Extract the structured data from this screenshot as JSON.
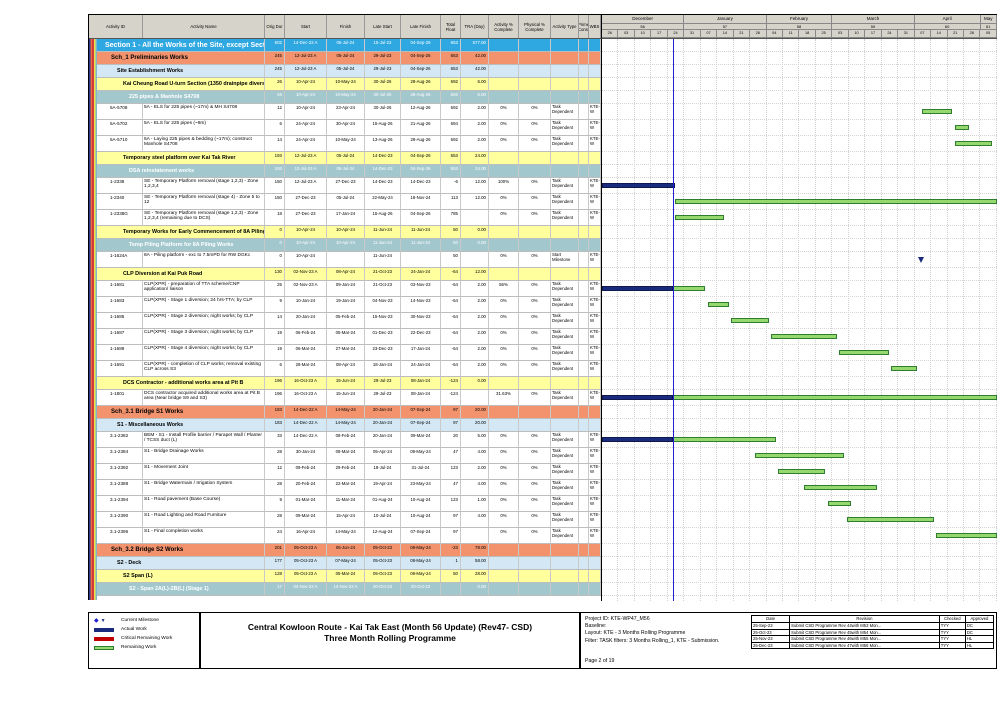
{
  "table": {
    "columns": [
      "Activity ID",
      "Activity Name",
      "Orig Dur",
      "Start",
      "Finish",
      "Late Start",
      "Late Finish",
      "Total Float",
      "TRA (Day)",
      "Activity % Complete",
      "Physical % Complete",
      "Activity Type",
      "Prime Const",
      "WBS"
    ]
  },
  "timeline": {
    "window_start": "26-Nov-23",
    "window_end": "12-May-24",
    "data_date": "26-Dec-23",
    "months": [
      {
        "name": "December",
        "num": "56",
        "weeks": [
          "26",
          "03",
          "10",
          "17",
          "24"
        ]
      },
      {
        "name": "January",
        "num": "57",
        "weeks": [
          "31",
          "07",
          "14",
          "21",
          "28"
        ]
      },
      {
        "name": "February",
        "num": "58",
        "weeks": [
          "04",
          "11",
          "18",
          "25"
        ]
      },
      {
        "name": "March",
        "num": "59",
        "weeks": [
          "03",
          "10",
          "17",
          "24",
          "31"
        ]
      },
      {
        "name": "April",
        "num": "60",
        "weeks": [
          "07",
          "14",
          "21",
          "28"
        ]
      },
      {
        "name": "May",
        "num": "61",
        "weeks": [
          "05"
        ]
      }
    ]
  },
  "colors": {
    "level1": "#2fa8e1",
    "level2": "#f2936e",
    "level3": "#d3e8f4",
    "level4": "#ffff9e",
    "level5": "#a2c8ce",
    "remaining": "#95d96e",
    "remaining_border": "#2f7d2f",
    "actual": "#1a2b7d",
    "critical": "#c00000",
    "milestone": "#1a2b7d",
    "data_date_line": "#1f1fd6"
  },
  "rows": [
    {
      "lv": 1,
      "name": "Section 1 - All the Works of the Site, except Section 2 to 17",
      "od": "502",
      "st": "14-Dec-22 A",
      "fn": "05-Jul-24",
      "ls": "15-Jul-23",
      "lf": "04-Sep-26",
      "tf": "653",
      "tra": "577.00"
    },
    {
      "lv": 2,
      "name": "Sch_1 Preliminaries Works",
      "od": "245",
      "st": "12-Jul-23 A",
      "fn": "05-Jul-24",
      "ls": "29-Jul-23",
      "lf": "04-Sep-26",
      "tf": "653",
      "tra": "42.00"
    },
    {
      "lv": 3,
      "name": "Site Establishment Works",
      "od": "245",
      "st": "12-Jul-23 A",
      "fn": "05-Jul-24",
      "ls": "29-Jul-23",
      "lf": "04-Sep-26",
      "tf": "653",
      "tra": "42.00"
    },
    {
      "lv": 4,
      "name": "Kai Cheung Road U-turn Section (1350 drainpipe diversion) (CE-0024)",
      "od": "26",
      "st": "10-Apr-24",
      "fn": "10-May-24",
      "ls": "30-Jul-26",
      "lf": "28-Aug-26",
      "tf": "692",
      "tra": "6.00"
    },
    {
      "lv": 5,
      "name": "225 pipes & Manhole S4708",
      "od": "26",
      "st": "10-Apr-24",
      "fn": "10-May-24",
      "ls": "30-Jul-26",
      "lf": "28-Aug-26",
      "tf": "692",
      "tra": "6.00"
    },
    {
      "lv": 0,
      "id": "5A-5708",
      "name": "5A - ELS for 225 pipes (~17m) & MH S4708",
      "od": "12",
      "st": "10-Apr-24",
      "fn": "23-Apr-24",
      "ls": "30-Jul-26",
      "lf": "12-Aug-26",
      "tf": "692",
      "tra": "2.00",
      "ap": "0%",
      "pp": "0%",
      "ty": "Task Dependent",
      "wbs": "KTE-W",
      "bars": [
        [
          "r",
          "10-Apr-24",
          "23-Apr-24"
        ]
      ]
    },
    {
      "lv": 0,
      "id": "5A-5702",
      "name": "5A - ELS for 225 pipes (~9m)",
      "od": "6",
      "st": "24-Apr-24",
      "fn": "30-Apr-24",
      "ls": "15-Aug-26",
      "lf": "21-Aug-26",
      "tf": "694",
      "tra": "2.00",
      "ap": "0%",
      "pp": "0%",
      "ty": "Task Dependent",
      "wbs": "KTE-W",
      "bars": [
        [
          "r",
          "24-Apr-24",
          "30-Apr-24"
        ]
      ]
    },
    {
      "lv": 0,
      "id": "5A-5710",
      "name": "5A - Laying 225 pipes & bedding (~17m); construct Manhole S4708",
      "od": "14",
      "st": "24-Apr-24",
      "fn": "10-May-24",
      "ls": "13-Aug-26",
      "lf": "28-Aug-26",
      "tf": "692",
      "tra": "2.00",
      "ap": "0%",
      "pp": "0%",
      "ty": "Task Dependent",
      "wbs": "KTE-W",
      "bars": [
        [
          "r",
          "24-Apr-24",
          "10-May-24"
        ]
      ]
    },
    {
      "lv": 4,
      "name": "Temporary steel platform over Kai Tak River",
      "od": "193",
      "st": "12-Jul-23 A",
      "fn": "05-Jul-24",
      "ls": "14-Dec-23",
      "lf": "04-Sep-26",
      "tf": "653",
      "tra": "24.00"
    },
    {
      "lv": 5,
      "name": "DSA reinstatement works",
      "od": "193",
      "st": "12-Jul-23 A",
      "fn": "05-Jul-24",
      "ls": "14-Dec-23",
      "lf": "04-Sep-26",
      "tf": "653",
      "tra": "24.00"
    },
    {
      "lv": 0,
      "id": "1-2338",
      "name": "SE - Temporary Platform removal (stage 1,2,3) - Zone 1,2,3,4",
      "od": "150",
      "st": "12-Jul-23 A",
      "fn": "27-Dec-23",
      "ls": "14-Dec-23",
      "lf": "14-Dec-23",
      "tf": "-6",
      "tra": "12.00",
      "ap": "100%",
      "pp": "0%",
      "ty": "Task Dependent",
      "wbs": "KTE-W",
      "bars": [
        [
          "a",
          "12-Jul-23",
          "27-Dec-23"
        ]
      ]
    },
    {
      "lv": 0,
      "id": "1-2340",
      "name": "SE - Temporary Platform removal (stage 4) - Zone 5 to 12",
      "od": "150",
      "st": "27-Dec-23",
      "fn": "05-Jul-24",
      "ls": "22-May-24",
      "lf": "18-Nov-24",
      "tf": "113",
      "tra": "12.00",
      "ap": "0%",
      "pp": "0%",
      "ty": "Task Dependent",
      "wbs": "KTE-W",
      "bars": [
        [
          "r",
          "27-Dec-23",
          "05-Jul-24"
        ]
      ]
    },
    {
      "lv": 0,
      "id": "1-2338G",
      "name": "SE - Temporary Platform removal (stage 1,2,3) - Zone 1,2,3,4 (remaining due to DCS)",
      "od": "18",
      "st": "27-Dec-23",
      "fn": "17-Jan-24",
      "ls": "15-Aug-26",
      "lf": "04-Sep-26",
      "tf": "785",
      "tra": "",
      "ap": "0%",
      "pp": "0%",
      "ty": "Task Dependent",
      "wbs": "KTE-W",
      "bars": [
        [
          "r",
          "27-Dec-23",
          "17-Jan-24"
        ]
      ]
    },
    {
      "lv": 4,
      "name": "Temporary Works for Early Commencement of 8A Piling Works",
      "od": "0",
      "st": "10-Apr-24",
      "fn": "10-Apr-24",
      "ls": "11-Jun-24",
      "lf": "11-Jun-24",
      "tf": "50",
      "tra": "0.00"
    },
    {
      "lv": 5,
      "name": "Temp Piling Platform for 8A Piling Works",
      "od": "0",
      "st": "10-Apr-24",
      "fn": "10-Apr-24",
      "ls": "11-Jun-24",
      "lf": "11-Jun-24",
      "tf": "50",
      "tra": "0.00"
    },
    {
      "lv": 0,
      "id": "1-1624A",
      "name": "8A - Piling platform - exc to 7.5mPD for RW DGKc",
      "od": "0",
      "st": "10-Apr-24",
      "fn": "",
      "ls": "11-Jun-24",
      "lf": "",
      "tf": "50",
      "tra": "",
      "ap": "0%",
      "pp": "0%",
      "ty": "Start Milestone",
      "wbs": "KTE-W",
      "ms": "10-Apr-24"
    },
    {
      "lv": 4,
      "name": "CLP Diversion at Kai Puk Road",
      "od": "130",
      "st": "02-Nov-23 A",
      "fn": "08-Apr-24",
      "ls": "21-Oct-23",
      "lf": "24-Jan-24",
      "tf": "-64",
      "tra": "12.00"
    },
    {
      "lv": 0,
      "id": "1-1681",
      "name": "CLP(XPR) - preparation of TTA scheme/CNP application/ liaison",
      "od": "25",
      "st": "02-Nov-23 A",
      "fn": "09-Jan-24",
      "ls": "21-Oct-23",
      "lf": "03-Nov-23",
      "tf": "-64",
      "tra": "2.00",
      "ap": "56%",
      "pp": "0%",
      "ty": "Task Dependent",
      "wbs": "KTE-W",
      "bars": [
        [
          "a",
          "02-Nov-23",
          "26-Dec-23"
        ],
        [
          "r",
          "26-Dec-23",
          "09-Jan-24"
        ]
      ]
    },
    {
      "lv": 0,
      "id": "1-1683",
      "name": "CLP(XPR) - Stage 1 diversion; 24 hrs-TTA; by CLP",
      "od": "9",
      "st": "10-Jan-24",
      "fn": "19-Jan-24",
      "ls": "04-Nov-23",
      "lf": "14-Nov-23",
      "tf": "-64",
      "tra": "2.00",
      "ap": "0%",
      "pp": "0%",
      "ty": "Task Dependent",
      "wbs": "KTE-W",
      "bars": [
        [
          "r",
          "10-Jan-24",
          "19-Jan-24"
        ]
      ]
    },
    {
      "lv": 0,
      "id": "1-1685",
      "name": "CLP(XPR) - Stage 2 diversion; night works; by CLP",
      "od": "14",
      "st": "20-Jan-24",
      "fn": "05-Feb-24",
      "ls": "15-Nov-23",
      "lf": "30-Nov-23",
      "tf": "-64",
      "tra": "2.00",
      "ap": "0%",
      "pp": "0%",
      "ty": "Task Dependent",
      "wbs": "KTE-W",
      "bars": [
        [
          "r",
          "20-Jan-24",
          "05-Feb-24"
        ]
      ]
    },
    {
      "lv": 0,
      "id": "1-1687",
      "name": "CLP(XPR) - Stage 3 diversion; night works; by CLP",
      "od": "19",
      "st": "06-Feb-24",
      "fn": "05-Mar-24",
      "ls": "01-Dec-23",
      "lf": "22-Dec-23",
      "tf": "-64",
      "tra": "2.00",
      "ap": "0%",
      "pp": "0%",
      "ty": "Task Dependent",
      "wbs": "KTE-W",
      "bars": [
        [
          "r",
          "06-Feb-24",
          "05-Mar-24"
        ]
      ]
    },
    {
      "lv": 0,
      "id": "1-1689",
      "name": "CLP(XPR) - Stage 4 diversion; night works; by CLP",
      "od": "19",
      "st": "06-Mar-24",
      "fn": "27-Mar-24",
      "ls": "23-Dec-23",
      "lf": "17-Jan-24",
      "tf": "-64",
      "tra": "2.00",
      "ap": "0%",
      "pp": "0%",
      "ty": "Task Dependent",
      "wbs": "KTE-W",
      "bars": [
        [
          "r",
          "06-Mar-24",
          "27-Mar-24"
        ]
      ]
    },
    {
      "lv": 0,
      "id": "1-1691",
      "name": "CLP(XPR) - completion of CLP works; removal existing CLP across S3",
      "od": "6",
      "st": "28-Mar-24",
      "fn": "08-Apr-24",
      "ls": "18-Jan-24",
      "lf": "24-Jan-24",
      "tf": "-64",
      "tra": "2.00",
      "ap": "0%",
      "pp": "0%",
      "ty": "Task Dependent",
      "wbs": "KTE-W",
      "bars": [
        [
          "r",
          "28-Mar-24",
          "08-Apr-24"
        ]
      ]
    },
    {
      "lv": 4,
      "name": "DCS Contractor - additional works area at Pit B",
      "od": "196",
      "st": "16-Oct-23 A",
      "fn": "15-Jun-24",
      "ls": "29-Jul-23",
      "lf": "08-Jan-24",
      "tf": "-124",
      "tra": "0.00"
    },
    {
      "lv": 0,
      "id": "1-1801",
      "name": "DCS contractor acquired additional works area at Pit B area (Near bridge S9 and S3)",
      "od": "196",
      "st": "16-Oct-23 A",
      "fn": "15-Jun-24",
      "ls": "29-Jul-23",
      "lf": "08-Jan-24",
      "tf": "-124",
      "tra": "",
      "ap": "31.63%",
      "pp": "0%",
      "ty": "Task Dependent",
      "wbs": "KTE-W",
      "bars": [
        [
          "a",
          "16-Oct-23",
          "26-Dec-23"
        ],
        [
          "r",
          "26-Dec-23",
          "15-Jun-24"
        ]
      ]
    },
    {
      "lv": 2,
      "name": "Sch_3.1 Bridge S1 Works",
      "od": "183",
      "st": "14-Dec-22 A",
      "fn": "14-May-24",
      "ls": "20-Jan-24",
      "lf": "07-Sep-24",
      "tf": "97",
      "tra": "20.00"
    },
    {
      "lv": 3,
      "name": "S1 - Miscellaneous Works",
      "od": "183",
      "st": "14-Dec-22 A",
      "fn": "14-May-24",
      "ls": "20-Jan-24",
      "lf": "07-Sep-24",
      "tf": "97",
      "tra": "20.00"
    },
    {
      "lv": 0,
      "id": "3.1-2382",
      "name": "BEM - S1 - Install Profile barrier / Parapet Wall / Planter / TCSS duct (L)",
      "od": "33",
      "st": "14-Dec-22 A",
      "fn": "08-Feb-24",
      "ls": "20-Jan-24",
      "lf": "09-Mar-24",
      "tf": "20",
      "tra": "5.00",
      "ap": "0%",
      "pp": "0%",
      "ty": "Task Dependent",
      "wbs": "KTE-W",
      "bars": [
        [
          "a",
          "14-Dec-22",
          "26-Dec-23"
        ],
        [
          "r",
          "26-Dec-23",
          "08-Feb-24"
        ]
      ]
    },
    {
      "lv": 0,
      "id": "3.1-2384",
      "name": "S1 - Bridge Drainage Works",
      "od": "28",
      "st": "30-Jan-24",
      "fn": "08-Mar-24",
      "ls": "05-Apr-24",
      "lf": "08-May-24",
      "tf": "47",
      "tra": "4.00",
      "ap": "0%",
      "pp": "0%",
      "ty": "Task Dependent",
      "wbs": "KTE-W",
      "bars": [
        [
          "r",
          "30-Jan-24",
          "08-Mar-24"
        ]
      ]
    },
    {
      "lv": 0,
      "id": "3.1-2392",
      "name": "S1 - Movement Joint",
      "od": "12",
      "st": "09-Feb-24",
      "fn": "29-Feb-24",
      "ls": "18-Jul-24",
      "lf": "31-Jul-24",
      "tf": "123",
      "tra": "2.00",
      "ap": "0%",
      "pp": "0%",
      "ty": "Task Dependent",
      "wbs": "KTE-W",
      "bars": [
        [
          "r",
          "09-Feb-24",
          "29-Feb-24"
        ]
      ]
    },
    {
      "lv": 0,
      "id": "3.1-2388",
      "name": "S1 - Bridge Watermain / Irrigation System",
      "od": "28",
      "st": "20-Feb-24",
      "fn": "22-Mar-24",
      "ls": "19-Apr-24",
      "lf": "23-May-24",
      "tf": "47",
      "tra": "4.00",
      "ap": "0%",
      "pp": "0%",
      "ty": "Task Dependent",
      "wbs": "KTE-W",
      "bars": [
        [
          "r",
          "20-Feb-24",
          "22-Mar-24"
        ]
      ]
    },
    {
      "lv": 0,
      "id": "3.1-2394",
      "name": "S1 - Road pavement (Base Course)",
      "od": "9",
      "st": "01-Mar-24",
      "fn": "11-Mar-24",
      "ls": "01-Aug-24",
      "lf": "10-Aug-24",
      "tf": "123",
      "tra": "1.00",
      "ap": "0%",
      "pp": "0%",
      "ty": "Task Dependent",
      "wbs": "KTE-W",
      "bars": [
        [
          "r",
          "01-Mar-24",
          "11-Mar-24"
        ]
      ]
    },
    {
      "lv": 0,
      "id": "3.1-2390",
      "name": "S1 - Road Lighting and Road Furniture",
      "od": "28",
      "st": "09-Mar-24",
      "fn": "15-Apr-24",
      "ls": "10-Jul-24",
      "lf": "10-Aug-24",
      "tf": "97",
      "tra": "4.00",
      "ap": "0%",
      "pp": "0%",
      "ty": "Task Dependent",
      "wbs": "KTE-W",
      "bars": [
        [
          "r",
          "09-Mar-24",
          "15-Apr-24"
        ]
      ]
    },
    {
      "lv": 0,
      "id": "3.1-2396",
      "name": "S1 - Final completion works",
      "od": "24",
      "st": "16-Apr-24",
      "fn": "14-May-24",
      "ls": "12-Aug-24",
      "lf": "07-Sep-24",
      "tf": "97",
      "tra": "",
      "ap": "0%",
      "pp": "0%",
      "ty": "Task Dependent",
      "wbs": "KTE-W",
      "bars": [
        [
          "r",
          "16-Apr-24",
          "14-May-24"
        ]
      ]
    },
    {
      "lv": 2,
      "name": "Sch_3.2 Bridge S2 Works",
      "od": "201",
      "st": "05-Oct-23 A",
      "fn": "05-Jun-24",
      "ls": "05-Oct-23",
      "lf": "08-May-24",
      "tf": "-23",
      "tra": "78.00"
    },
    {
      "lv": 3,
      "name": "S2 - Deck",
      "od": "177",
      "st": "05-Oct-23 A",
      "fn": "07-May-24",
      "ls": "05-Oct-23",
      "lf": "08-May-24",
      "tf": "1",
      "tra": "58.00"
    },
    {
      "lv": 4,
      "name": "S2 Span (L)",
      "od": "128",
      "st": "05-Oct-23 A",
      "fn": "05-Mar-24",
      "ls": "05-Oct-23",
      "lf": "08-May-24",
      "tf": "50",
      "tra": "28.00"
    },
    {
      "lv": 5,
      "name": "S2 - Span 2A(L)-2B(L) (Stage 1)",
      "od": "17",
      "st": "03-Nov-23 A",
      "fn": "13-Nov-23 A",
      "ls": "20-Oct-23",
      "lf": "20-Oct-23",
      "tf": "",
      "tra": "0.00",
      "bars": [
        [
          "a",
          "03-Nov-23",
          "13-Nov-23"
        ]
      ]
    }
  ],
  "footer": {
    "legend": [
      {
        "icon": "milestone",
        "label": "Current Milestone"
      },
      {
        "icon": "actual",
        "label": "Actual Work"
      },
      {
        "icon": "critical",
        "label": "Critical Remaining Work"
      },
      {
        "icon": "remaining",
        "label": "Remaining Work"
      }
    ],
    "title_line1": "Central Kowloon Route - Kai Tak East (Month 56 Update) (Rev47- CSD)",
    "title_line2": "Three Month Rolling Programme",
    "info_lines": [
      "Project ID: KTE-WP47_M56",
      "Baseline:",
      "Layout: KTE - 3 Months Rolling Programme",
      "Filter: TASK filters: 3 Months Rolling_1, KTE - Submission."
    ],
    "page": "Page 2 of 19",
    "revisions": {
      "header": [
        "Date",
        "Revision",
        "Checked",
        "Approved"
      ],
      "rows": [
        [
          "25-Sep-23",
          "Submit CSD Programme Rev 44with M53 Mon...",
          "TYY",
          "DC"
        ],
        [
          "25-Oct-23",
          "Submit CSD Programme Rev 45with M54 Mon...",
          "TYY",
          "DC"
        ],
        [
          "25-Nov-23",
          "Submit CSD Programme Rev 46with M55 Mon...",
          "TYY",
          "HL"
        ],
        [
          "25-Dec-23",
          "Submit CSD Programme Rev 47with M56 Mon...",
          "TYY",
          "HL"
        ]
      ]
    }
  }
}
